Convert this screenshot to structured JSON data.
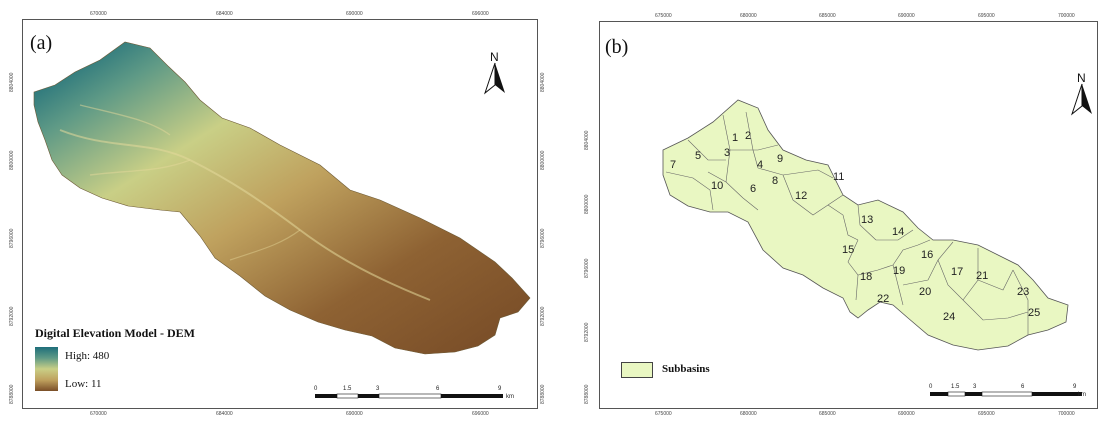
{
  "panel_a": {
    "label": "(a)",
    "north": "N",
    "x_ticks": [
      "670000",
      "684000",
      "690000",
      "696000"
    ],
    "y_ticks_left": [
      "8804000",
      "8800000",
      "8796000",
      "8792000",
      "8788000"
    ],
    "y_ticks_right": [
      "8804000",
      "8800000",
      "8796000",
      "8792000",
      "8788000"
    ],
    "legend": {
      "title": "Digital Elevation Model - DEM",
      "high": "High: 480",
      "low": "Low: 11",
      "colors": [
        "#1e6e7a",
        "#5f9a86",
        "#c9cf86",
        "#bfa15e",
        "#7a4e28"
      ]
    },
    "scale": {
      "labels": [
        "0",
        "1.5",
        "3",
        "6",
        "9"
      ],
      "unit": "km"
    }
  },
  "panel_b": {
    "label": "(b)",
    "north": "N",
    "x_ticks": [
      "675000",
      "680000",
      "685000",
      "690000",
      "695000",
      "700000"
    ],
    "y_ticks_left": [
      "8804000",
      "8800000",
      "8796000",
      "8792000",
      "8788000"
    ],
    "legend": {
      "label": "Subbasins",
      "fill": "#e9f7c2"
    },
    "subbasins": [
      "1",
      "2",
      "3",
      "4",
      "5",
      "6",
      "7",
      "8",
      "9",
      "10",
      "11",
      "12",
      "13",
      "14",
      "15",
      "16",
      "17",
      "18",
      "19",
      "20",
      "21",
      "22",
      "23",
      "24",
      "25"
    ],
    "scale": {
      "labels": [
        "0",
        "1.5",
        "3",
        "6",
        "9"
      ],
      "unit": "km"
    }
  }
}
